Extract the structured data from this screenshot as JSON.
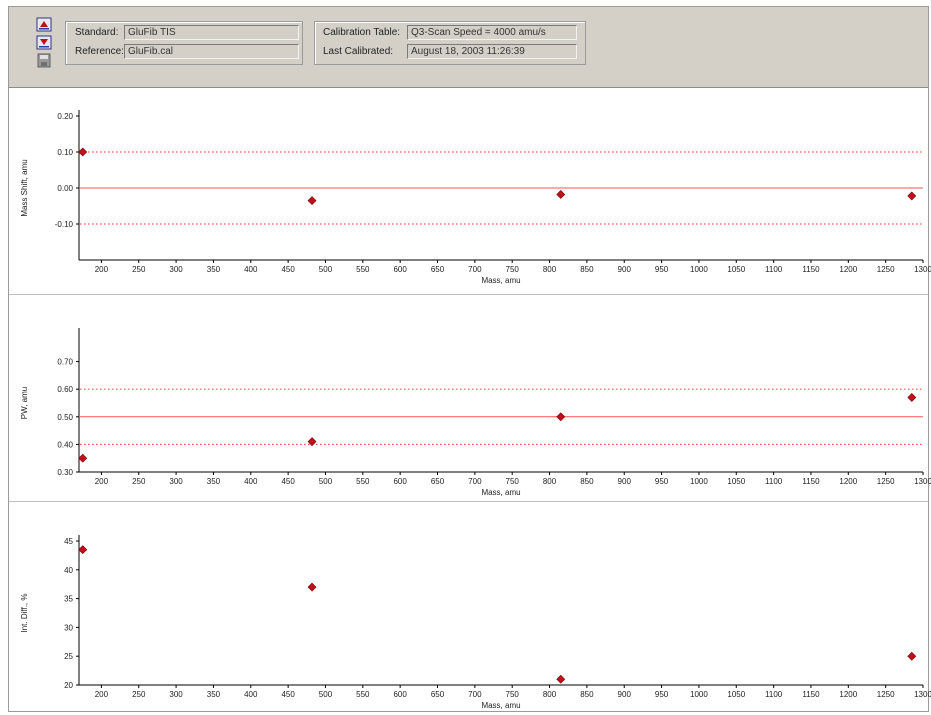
{
  "header": {
    "standard_label": "Standard:",
    "standard_value": "GluFib TIS",
    "reference_label": "Reference:",
    "reference_value": "GluFib.cal",
    "cal_table_label": "Calibration Table:",
    "cal_table_value": "Q3-Scan Speed = 4000 amu/s",
    "last_cal_label": "Last Calibrated:",
    "last_cal_value": "August 18, 2003 11:26:39"
  },
  "icons": [
    "calibrate-up-icon",
    "calibrate-down-icon",
    "save-disk-icon"
  ],
  "colors": {
    "marker": "#c0101a",
    "limit_line": "#ff5050",
    "axis": "#000000"
  },
  "chart_data": [
    {
      "type": "scatter",
      "xlabel": "Mass, amu",
      "ylabel": "Mass Shift, amu",
      "xlim": [
        170,
        1300
      ],
      "ylim": [
        -0.2,
        0.2
      ],
      "xticks": [
        "200",
        "250",
        "300",
        "350",
        "400",
        "450",
        "500",
        "550",
        "600",
        "650",
        "700",
        "750",
        "800",
        "850",
        "900",
        "950",
        "1000",
        "1050",
        "1100",
        "1150",
        "1200",
        "1250",
        "1300"
      ],
      "yticks": [
        {
          "v": 0.2,
          "label": "0.20"
        },
        {
          "v": 0.1,
          "label": "0.10"
        },
        {
          "v": 0.0,
          "label": "0.00"
        },
        {
          "v": -0.1,
          "label": "-0.10"
        }
      ],
      "hlines": [
        {
          "y": 0.1,
          "style": "dotted"
        },
        {
          "y": 0.0,
          "style": "solid"
        },
        {
          "y": -0.1,
          "style": "dotted"
        }
      ],
      "points": [
        {
          "x": 175,
          "y": 0.1
        },
        {
          "x": 482,
          "y": -0.035
        },
        {
          "x": 815,
          "y": -0.018
        },
        {
          "x": 1285,
          "y": -0.022
        }
      ]
    },
    {
      "type": "scatter",
      "xlabel": "Mass, amu",
      "ylabel": "PW, amu",
      "xlim": [
        170,
        1300
      ],
      "ylim": [
        0.3,
        0.8
      ],
      "xticks": [
        "200",
        "250",
        "300",
        "350",
        "400",
        "450",
        "500",
        "550",
        "600",
        "650",
        "700",
        "750",
        "800",
        "850",
        "900",
        "950",
        "1000",
        "1050",
        "1100",
        "1150",
        "1200",
        "1250",
        "1300"
      ],
      "yticks": [
        {
          "v": 0.3,
          "label": "0.30"
        },
        {
          "v": 0.4,
          "label": "0.40"
        },
        {
          "v": 0.5,
          "label": "0.50"
        },
        {
          "v": 0.6,
          "label": "0.60"
        },
        {
          "v": 0.7,
          "label": "0.70"
        }
      ],
      "hlines": [
        {
          "y": 0.6,
          "style": "dotted"
        },
        {
          "y": 0.5,
          "style": "solid"
        },
        {
          "y": 0.4,
          "style": "dotted"
        }
      ],
      "points": [
        {
          "x": 175,
          "y": 0.35
        },
        {
          "x": 482,
          "y": 0.41
        },
        {
          "x": 815,
          "y": 0.5
        },
        {
          "x": 1285,
          "y": 0.57
        }
      ]
    },
    {
      "type": "scatter",
      "xlabel": "Mass, amu",
      "ylabel": "Int. Diff., %",
      "xlim": [
        170,
        1300
      ],
      "ylim": [
        20,
        45
      ],
      "xticks": [
        "200",
        "250",
        "300",
        "350",
        "400",
        "450",
        "500",
        "550",
        "600",
        "650",
        "700",
        "750",
        "800",
        "850",
        "900",
        "950",
        "1000",
        "1050",
        "1100",
        "1150",
        "1200",
        "1250",
        "1300"
      ],
      "yticks": [
        {
          "v": 20,
          "label": "20"
        },
        {
          "v": 25,
          "label": "25"
        },
        {
          "v": 30,
          "label": "30"
        },
        {
          "v": 35,
          "label": "35"
        },
        {
          "v": 40,
          "label": "40"
        },
        {
          "v": 45,
          "label": "45"
        }
      ],
      "hlines": [],
      "points": [
        {
          "x": 175,
          "y": 43.5
        },
        {
          "x": 482,
          "y": 37
        },
        {
          "x": 815,
          "y": 21
        },
        {
          "x": 1285,
          "y": 25
        }
      ]
    }
  ]
}
